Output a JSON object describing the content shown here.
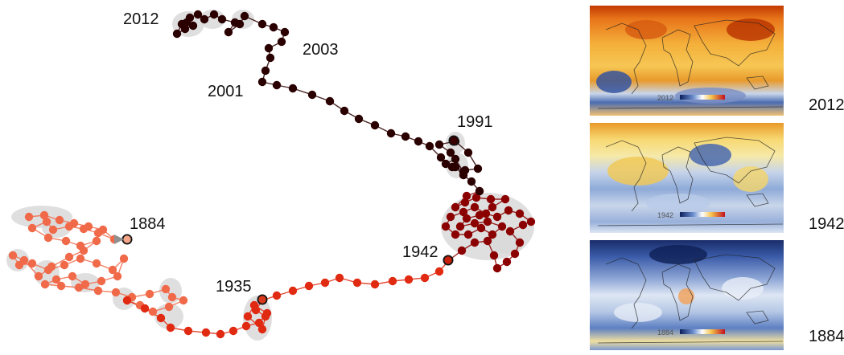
{
  "trajectory": {
    "year_labels": [
      "2012",
      "2003",
      "2001",
      "1991",
      "1884",
      "1942",
      "1935"
    ]
  },
  "maps": [
    {
      "year": "2012",
      "theme": "warm",
      "legend_text": "2012"
    },
    {
      "year": "1942",
      "theme": "mixed",
      "legend_text": "1942"
    },
    {
      "year": "1884",
      "theme": "cool",
      "legend_text": "1884"
    }
  ],
  "colors": {
    "early": "#f06a4a",
    "mid": "#e02a12",
    "late": "#8b0000",
    "latest": "#2a0000",
    "halo": "#d9d9d9"
  }
}
